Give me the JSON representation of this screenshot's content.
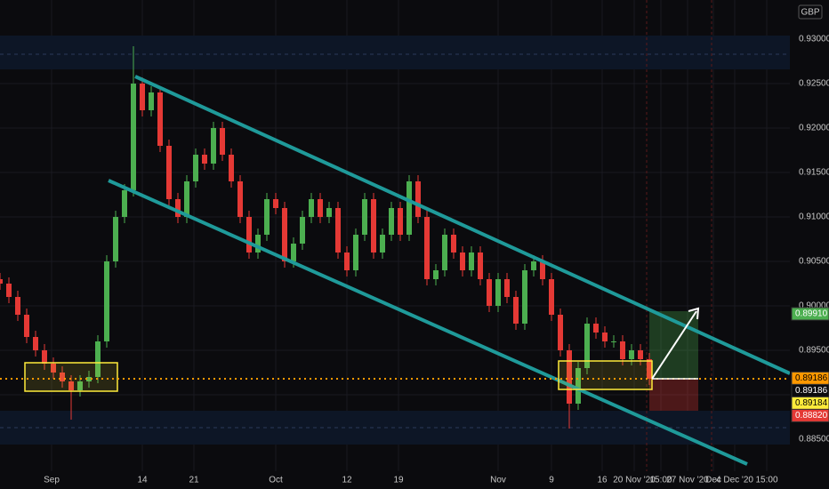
{
  "chart_data": {
    "type": "candlestick",
    "currency": "GBP",
    "open": [
      0.903,
      0.9025,
      0.901,
      0.899,
      0.8965,
      0.895,
      0.8935,
      0.8925,
      0.8915,
      0.8905,
      0.8915,
      0.892,
      0.896,
      0.905,
      0.91,
      0.913,
      0.925,
      0.922,
      0.924,
      0.918,
      0.912,
      0.91,
      0.914,
      0.917,
      0.916,
      0.92,
      0.917,
      0.914,
      0.91,
      0.906,
      0.908,
      0.912,
      0.911,
      0.905,
      0.907,
      0.91,
      0.912,
      0.91,
      0.911,
      0.906,
      0.904,
      0.908,
      0.912,
      0.906,
      0.908,
      0.911,
      0.908,
      0.914,
      0.91,
      0.903,
      0.904,
      0.908,
      0.906,
      0.904,
      0.906,
      0.903,
      0.9,
      0.903,
      0.901,
      0.898,
      0.904,
      0.905,
      0.903,
      0.899,
      0.895,
      0.889,
      0.893,
      0.898,
      0.897,
      0.896,
      0.896,
      0.894,
      0.895,
      0.894
    ],
    "high": [
      0.9037,
      0.9032,
      0.9017,
      0.8997,
      0.8972,
      0.8957,
      0.8942,
      0.8932,
      0.8922,
      0.8922,
      0.8927,
      0.8967,
      0.9057,
      0.9107,
      0.9137,
      0.9292,
      0.9257,
      0.9247,
      0.9247,
      0.9187,
      0.9127,
      0.9147,
      0.9177,
      0.9177,
      0.9207,
      0.9207,
      0.9177,
      0.9147,
      0.9107,
      0.9087,
      0.9127,
      0.9127,
      0.9117,
      0.9077,
      0.9107,
      0.9127,
      0.9127,
      0.9117,
      0.9117,
      0.9067,
      0.9087,
      0.9127,
      0.9127,
      0.9087,
      0.9117,
      0.9117,
      0.9147,
      0.9147,
      0.9107,
      0.9047,
      0.9087,
      0.9087,
      0.9067,
      0.9067,
      0.9067,
      0.9037,
      0.9037,
      0.9037,
      0.9017,
      0.9047,
      0.9057,
      0.9057,
      0.9037,
      0.8997,
      0.8957,
      0.8937,
      0.8987,
      0.8987,
      0.8977,
      0.8967,
      0.8967,
      0.8957,
      0.8957,
      0.8947
    ],
    "low": [
      0.9018,
      0.9003,
      0.8983,
      0.8958,
      0.8943,
      0.8928,
      0.8918,
      0.8908,
      0.8872,
      0.8898,
      0.8908,
      0.8913,
      0.8953,
      0.9043,
      0.9093,
      0.9123,
      0.9213,
      0.9213,
      0.9173,
      0.9113,
      0.9093,
      0.9093,
      0.9133,
      0.9153,
      0.9153,
      0.9163,
      0.9133,
      0.9093,
      0.9053,
      0.9053,
      0.9073,
      0.9103,
      0.9043,
      0.9043,
      0.9063,
      0.9093,
      0.9093,
      0.9093,
      0.9053,
      0.9033,
      0.9033,
      0.9073,
      0.9053,
      0.9053,
      0.9073,
      0.9073,
      0.9073,
      0.9093,
      0.9023,
      0.9023,
      0.9033,
      0.9053,
      0.9033,
      0.9033,
      0.9023,
      0.8993,
      0.8993,
      0.9003,
      0.8973,
      0.8973,
      0.9033,
      0.9023,
      0.8983,
      0.8943,
      0.8862,
      0.8883,
      0.8923,
      0.8963,
      0.8953,
      0.8953,
      0.8933,
      0.8933,
      0.8933,
      0.8911
    ],
    "close": [
      0.9025,
      0.901,
      0.899,
      0.8965,
      0.895,
      0.8935,
      0.8925,
      0.8915,
      0.8905,
      0.8915,
      0.892,
      0.896,
      0.905,
      0.91,
      0.913,
      0.925,
      0.922,
      0.924,
      0.918,
      0.912,
      0.91,
      0.914,
      0.917,
      0.916,
      0.92,
      0.917,
      0.914,
      0.91,
      0.906,
      0.908,
      0.912,
      0.911,
      0.905,
      0.907,
      0.91,
      0.912,
      0.91,
      0.911,
      0.906,
      0.904,
      0.908,
      0.912,
      0.906,
      0.908,
      0.911,
      0.908,
      0.914,
      0.91,
      0.903,
      0.904,
      0.908,
      0.906,
      0.904,
      0.906,
      0.903,
      0.9,
      0.903,
      0.901,
      0.898,
      0.904,
      0.905,
      0.903,
      0.899,
      0.895,
      0.889,
      0.893,
      0.898,
      0.897,
      0.896,
      0.896,
      0.894,
      0.895,
      0.894,
      0.8918
    ],
    "up_color": "#4caf50",
    "down_color": "#e53935",
    "xlim": [
      0,
      88.8
    ],
    "ylim": [
      0.8814,
      0.9344
    ],
    "xticks": [
      {
        "value": 5.8,
        "label": "Sep"
      },
      {
        "value": 16.0,
        "label": "14"
      },
      {
        "value": 21.8,
        "label": "21"
      },
      {
        "value": 31.0,
        "label": "Oct"
      },
      {
        "value": 39.0,
        "label": "12"
      },
      {
        "value": 44.8,
        "label": "19"
      },
      {
        "value": 56.0,
        "label": "Nov"
      },
      {
        "value": 62.0,
        "label": "9"
      },
      {
        "value": 67.7,
        "label": "16"
      },
      {
        "value": 71.3,
        "label": "20 Nov '20"
      },
      {
        "value": 74.3,
        "label": "15:00"
      },
      {
        "value": 77.3,
        "label": "27 Nov '20"
      },
      {
        "value": 80.2,
        "label": "Dec"
      },
      {
        "value": 82.6,
        "label": "4 Dec '20"
      },
      {
        "value": 86.2,
        "label": "15:00"
      }
    ],
    "yticks": [
      {
        "value": 0.885,
        "label": "0.88500"
      },
      {
        "value": 0.89,
        "label": "0.89000"
      },
      {
        "value": 0.895,
        "label": "0.89500"
      },
      {
        "value": 0.9,
        "label": "0.90000"
      },
      {
        "value": 0.905,
        "label": "0.90500"
      },
      {
        "value": 0.91,
        "label": "0.91000"
      },
      {
        "value": 0.915,
        "label": "0.91500"
      },
      {
        "value": 0.92,
        "label": "0.92000"
      },
      {
        "value": 0.925,
        "label": "0.92500"
      },
      {
        "value": 0.93,
        "label": "0.93000"
      }
    ],
    "grid": true,
    "price_tags": [
      {
        "value": 0.8991,
        "label": "0.89910",
        "color": "#4caf50"
      },
      {
        "value": 0.89186,
        "label": "0.89186",
        "color": "#ff9800"
      },
      {
        "value": 0.89186,
        "label": "0.89186",
        "color": "#0b0b0e"
      },
      {
        "value": 0.89184,
        "label": "0.89184",
        "color": "#ffeb3b"
      },
      {
        "value": 0.8882,
        "label": "0.88820",
        "color": "#e53935"
      }
    ]
  }
}
